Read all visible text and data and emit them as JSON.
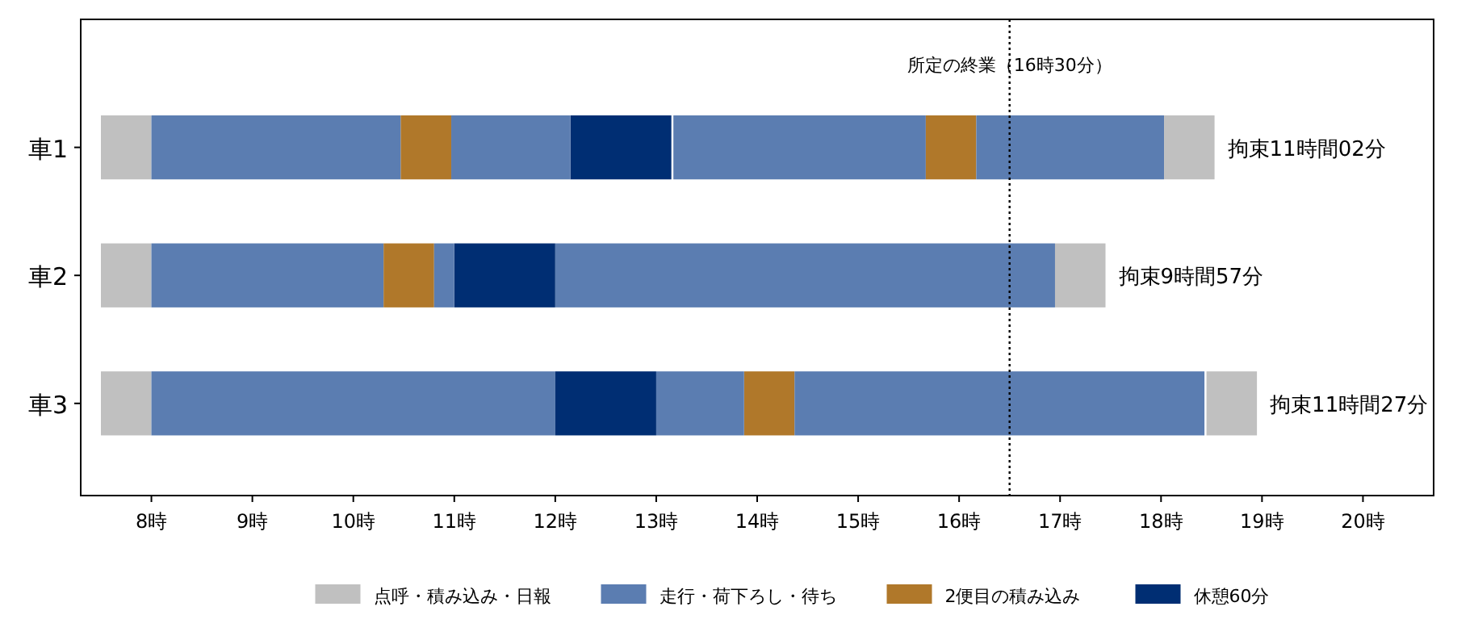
{
  "chart_data": {
    "type": "bar",
    "orientation": "horizontal",
    "categories": [
      "車1",
      "車2",
      "車3"
    ],
    "series": [
      {
        "name": "点呼・積み込み・日報",
        "color": "#c0c0c0",
        "base": [
          7.5,
          7.5,
          7.5
        ],
        "values": [
          0.5,
          0.5,
          0.5
        ]
      },
      {
        "name": "走行・荷下ろし・待ち",
        "color": "#5b7db1",
        "base": [
          8,
          8,
          8
        ],
        "values": [
          2.47,
          2.3,
          4.0
        ]
      },
      {
        "name": "2便目の積み込み",
        "color": "#b0782a",
        "base": [
          10.47,
          10.3,
          13.87
        ],
        "values": [
          0.5,
          0.5,
          0.5
        ]
      },
      {
        "name": "休憩60分",
        "color": "#002e73",
        "base": [
          12.15,
          11.0,
          12.0
        ],
        "values": [
          1,
          1,
          1
        ]
      },
      {
        "color": "#5b7db1",
        "base": [
          10.97,
          10.8,
          13.0
        ],
        "values": [
          1.18,
          0.2,
          0.87
        ]
      },
      {
        "color": "#5b7db1",
        "base": [
          13.17,
          12.0,
          14.37
        ],
        "values": [
          2.5,
          4.95,
          4.06
        ]
      },
      {
        "color": "#b0782a",
        "base": [
          15.67,
          null,
          null
        ],
        "values": [
          0.5,
          null,
          null
        ]
      },
      {
        "color": "#5b7db1",
        "base": [
          16.17,
          null,
          null
        ],
        "values": [
          1.86,
          null,
          null
        ]
      },
      {
        "color": "#c0c0c0",
        "base": [
          18.03,
          16.95,
          18.45
        ],
        "values": [
          0.5,
          0.5,
          0.5
        ]
      }
    ],
    "totals": [
      "拘束11時間02分",
      "拘束9時間57分",
      "拘束11時間27分"
    ],
    "ref_lines": [
      {
        "axis": "x",
        "value": 16.5,
        "label": "所定の終業（16時30分）",
        "line_style": "dotted"
      }
    ],
    "xlim": [
      7.3,
      20.7
    ],
    "xticks": [
      {
        "value": 8,
        "label": "8時"
      },
      {
        "value": 9,
        "label": "9時"
      },
      {
        "value": 10,
        "label": "10時"
      },
      {
        "value": 11,
        "label": "11時"
      },
      {
        "value": 12,
        "label": "12時"
      },
      {
        "value": 13,
        "label": "13時"
      },
      {
        "value": 14,
        "label": "14時"
      },
      {
        "value": 15,
        "label": "15時"
      },
      {
        "value": 16,
        "label": "16時"
      },
      {
        "value": 17,
        "label": "17時"
      },
      {
        "value": 18,
        "label": "18時"
      },
      {
        "value": 19,
        "label": "19時"
      },
      {
        "value": 20,
        "label": "20時"
      }
    ],
    "legend": "bottom"
  }
}
